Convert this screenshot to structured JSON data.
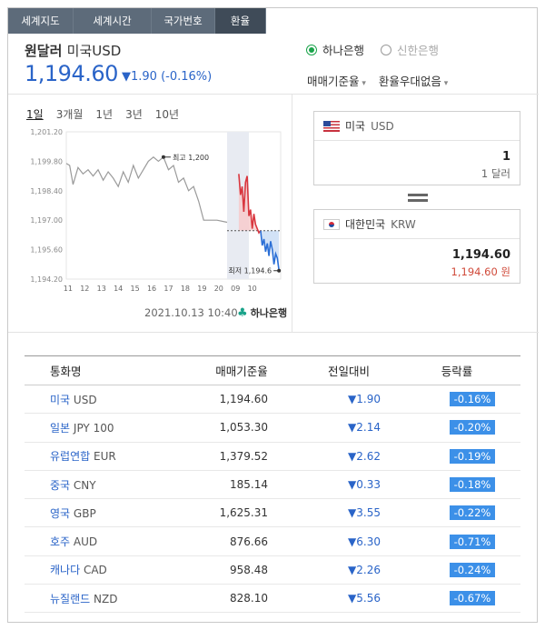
{
  "tabs": [
    {
      "label": "세계지도"
    },
    {
      "label": "세계시간"
    },
    {
      "label": "국가번호"
    },
    {
      "label": "환율"
    }
  ],
  "header": {
    "title_main": "원달러",
    "title_sub": "미국USD",
    "rate": "1,194.60",
    "change": "▼1.90 (-0.16%)"
  },
  "banks": {
    "selected": "하나은행",
    "other": "신한은행"
  },
  "selects": {
    "rate_type": "매매기준율",
    "preference": "환율우대없음"
  },
  "periods": [
    {
      "label": "1일"
    },
    {
      "label": "3개월"
    },
    {
      "label": "1년"
    },
    {
      "label": "3년"
    },
    {
      "label": "10년"
    }
  ],
  "chart_data": {
    "type": "line",
    "y_ticks": [
      "1,201.20",
      "1,199.80",
      "1,198.40",
      "1,197.00",
      "1,195.60",
      "1,194.20"
    ],
    "ylim": [
      1194.2,
      1201.2
    ],
    "x_ticks": [
      "11",
      "12",
      "13",
      "14",
      "15",
      "16",
      "17",
      "18",
      "19",
      "20",
      "09",
      "10"
    ],
    "high_label": "최고 1,200",
    "low_label": "최저 1,194.6",
    "reference": 1196.5,
    "series": [
      {
        "color": "#9a9a9a",
        "x": [
          0.0,
          0.2,
          0.4,
          0.7,
          1.0,
          1.3,
          1.6,
          1.9,
          2.2,
          2.5,
          2.8,
          3.1,
          3.4,
          3.7,
          4.0,
          4.3,
          4.6,
          4.9,
          5.2,
          5.5,
          5.8,
          6.1,
          6.4,
          6.7,
          7.0,
          7.3,
          7.6,
          7.9,
          8.2,
          9.0,
          9.6
        ],
        "y": [
          1199.7,
          1199.6,
          1198.7,
          1199.5,
          1199.2,
          1199.4,
          1199.1,
          1199.4,
          1198.9,
          1199.3,
          1199.0,
          1198.6,
          1199.3,
          1198.8,
          1199.6,
          1199.0,
          1199.4,
          1199.8,
          1200.0,
          1199.8,
          1200.0,
          1199.4,
          1199.6,
          1198.8,
          1199.0,
          1198.4,
          1198.6,
          1197.9,
          1197.0,
          1197.0,
          1196.9
        ]
      },
      {
        "color": "#d9363e",
        "x": [
          10.3,
          10.4,
          10.5,
          10.6,
          10.7,
          10.8,
          10.9,
          11.0,
          11.1,
          11.2,
          11.3,
          11.4,
          11.5,
          11.6
        ],
        "y": [
          1199.2,
          1198.2,
          1198.6,
          1197.4,
          1198.8,
          1199.1,
          1197.2,
          1197.5,
          1196.6,
          1197.3,
          1196.8,
          1196.6,
          1196.4,
          1196.5
        ]
      },
      {
        "color": "#2b6fd6",
        "x": [
          11.6,
          11.7,
          11.8,
          11.9,
          12.0,
          12.1,
          12.2,
          12.3,
          12.4,
          12.5,
          12.6,
          12.7
        ],
        "y": [
          1196.5,
          1195.8,
          1196.1,
          1195.5,
          1195.9,
          1195.3,
          1196.0,
          1195.6,
          1194.9,
          1195.4,
          1195.2,
          1194.6
        ]
      }
    ]
  },
  "chart_date": "2021.10.13  10:40",
  "logo_text": "하나은행",
  "converter": {
    "from": {
      "country": "미국",
      "code": "USD",
      "amount": "1",
      "unit": "1 달러"
    },
    "to": {
      "country": "대한민국",
      "code": "KRW",
      "amount": "1,194.60",
      "unit": "1,194.60 원"
    }
  },
  "table": {
    "headers": [
      "통화명",
      "매매기준율",
      "전일대비",
      "등락률"
    ],
    "rows": [
      {
        "name": "미국",
        "code": "USD",
        "rate": "1,194.60",
        "change": "▼1.90",
        "pct": "-0.16%"
      },
      {
        "name": "일본",
        "code": "JPY 100",
        "rate": "1,053.30",
        "change": "▼2.14",
        "pct": "-0.20%"
      },
      {
        "name": "유럽연합",
        "code": "EUR",
        "rate": "1,379.52",
        "change": "▼2.62",
        "pct": "-0.19%"
      },
      {
        "name": "중국",
        "code": "CNY",
        "rate": "185.14",
        "change": "▼0.33",
        "pct": "-0.18%"
      },
      {
        "name": "영국",
        "code": "GBP",
        "rate": "1,625.31",
        "change": "▼3.55",
        "pct": "-0.22%"
      },
      {
        "name": "호주",
        "code": "AUD",
        "rate": "876.66",
        "change": "▼6.30",
        "pct": "-0.71%"
      },
      {
        "name": "캐나다",
        "code": "CAD",
        "rate": "958.48",
        "change": "▼2.26",
        "pct": "-0.24%"
      },
      {
        "name": "뉴질랜드",
        "code": "NZD",
        "rate": "828.10",
        "change": "▼5.56",
        "pct": "-0.67%"
      }
    ]
  }
}
